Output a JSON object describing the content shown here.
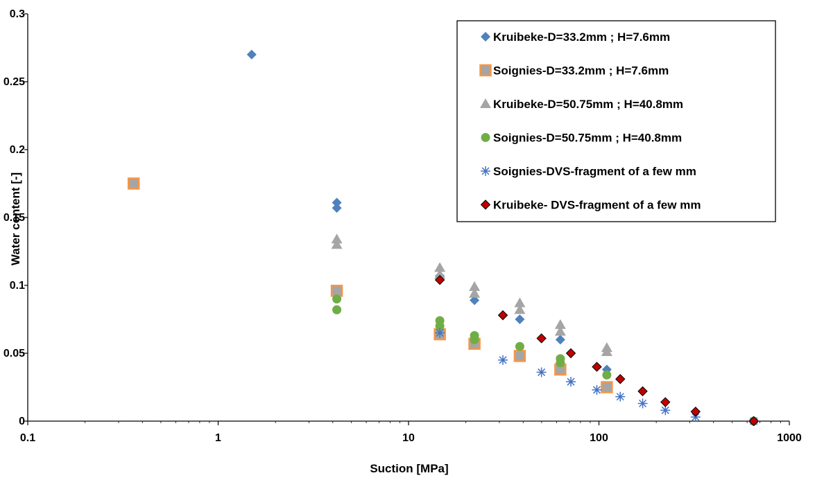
{
  "chart_data": {
    "type": "scatter",
    "title": "",
    "xlabel": "Suction [MPa]",
    "ylabel": "Water content [-]",
    "x_scale": "log",
    "xlim": [
      0.1,
      1000
    ],
    "ylim": [
      0,
      0.3
    ],
    "x_ticks": [
      "0.1",
      "1",
      "10",
      "100",
      "1000"
    ],
    "y_ticks": [
      "0",
      "0.05",
      "0.1",
      "0.15",
      "0.2",
      "0.25",
      "0.3"
    ],
    "grid": false,
    "legend_position": "top-right",
    "series": [
      {
        "name": "Kruibeke-D=33.2mm ; H=7.6mm",
        "marker": "diamond",
        "color": "#4f81bd",
        "x": [
          1.5,
          4.2,
          4.2,
          14.6,
          22.2,
          38.4,
          62.7,
          110,
          650
        ],
        "y": [
          0.27,
          0.161,
          0.157,
          0.107,
          0.089,
          0.075,
          0.06,
          0.038,
          0
        ]
      },
      {
        "name": "Soignies-D=33.2mm ; H=7.6mm",
        "marker": "square",
        "color": "#f79646",
        "x": [
          0.36,
          4.2,
          14.6,
          22.2,
          38.4,
          62.7,
          110
        ],
        "y": [
          0.175,
          0.096,
          0.064,
          0.057,
          0.048,
          0.038,
          0.025
        ]
      },
      {
        "name": "Kruibeke-D=50.75mm ; H=40.8mm",
        "marker": "triangle",
        "color": "#a5a5a5",
        "x": [
          4.2,
          4.2,
          14.6,
          14.6,
          22.2,
          22.2,
          38.4,
          38.4,
          62.7,
          62.7,
          110,
          110
        ],
        "y": [
          0.134,
          0.13,
          0.113,
          0.108,
          0.099,
          0.094,
          0.087,
          0.082,
          0.071,
          0.066,
          0.054,
          0.051
        ]
      },
      {
        "name": "Soignies-D=50.75mm ; H=40.8mm",
        "marker": "circle",
        "color": "#70ad47",
        "x": [
          4.2,
          4.2,
          14.6,
          14.6,
          22.2,
          22.2,
          38.4,
          62.7,
          62.7,
          110,
          650
        ],
        "y": [
          0.09,
          0.082,
          0.074,
          0.07,
          0.063,
          0.06,
          0.055,
          0.046,
          0.043,
          0.034,
          0
        ]
      },
      {
        "name": "Soignies-DVS-fragment of a few mm",
        "marker": "asterisk",
        "color": "#4472c4",
        "x": [
          14.6,
          31.3,
          49.9,
          71.2,
          97.5,
          129.4,
          169.7,
          223.3,
          321.7,
          650
        ],
        "y": [
          0.065,
          0.045,
          0.036,
          0.029,
          0.023,
          0.018,
          0.013,
          0.008,
          0.003,
          0
        ]
      },
      {
        "name": "Kruibeke- DVS-fragment of a few mm",
        "marker": "diamond-outlined",
        "color": "#c00000",
        "x": [
          14.6,
          31.3,
          49.9,
          71.2,
          97.5,
          129.4,
          169.7,
          223.3,
          321.7,
          650
        ],
        "y": [
          0.104,
          0.078,
          0.061,
          0.05,
          0.04,
          0.031,
          0.022,
          0.014,
          0.007,
          0
        ]
      }
    ]
  }
}
